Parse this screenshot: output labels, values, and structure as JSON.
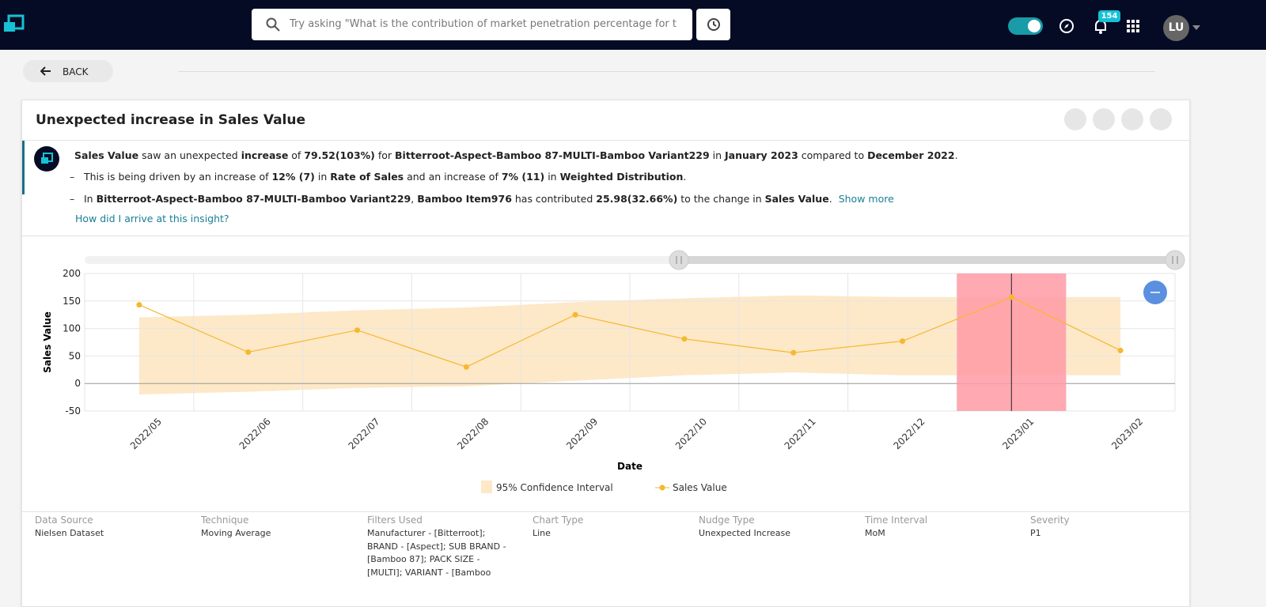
{
  "nav": {
    "search_placeholder": "Try asking \"What is the contribution of market penetration percentage for tr",
    "notification_count": "154",
    "avatar": "LU"
  },
  "back_button": "BACK",
  "card": {
    "title": "Unexpected increase in Sales Value",
    "insight": {
      "lines": [
        {
          "segments": [
            {
              "text": "Sales Value",
              "bold": true
            },
            {
              "text": " saw an unexpected ",
              "bold": false
            },
            {
              "text": "increase",
              "bold": true
            },
            {
              "text": " of ",
              "bold": false
            },
            {
              "text": "79.52(103%)",
              "bold": true
            },
            {
              "text": " for ",
              "bold": false
            },
            {
              "text": "Bitterroot-Aspect-Bamboo 87-MULTI-Bamboo Variant229",
              "bold": true
            },
            {
              "text": " in ",
              "bold": false
            },
            {
              "text": "January 2023",
              "bold": true
            },
            {
              "text": " compared to ",
              "bold": false
            },
            {
              "text": "December 2022",
              "bold": true
            },
            {
              "text": ".",
              "bold": false
            }
          ]
        },
        {
          "bullet": "–",
          "segments": [
            {
              "text": "This is being driven by an increase of ",
              "bold": false
            },
            {
              "text": "12% (7)",
              "bold": true
            },
            {
              "text": " in ",
              "bold": false
            },
            {
              "text": "Rate of Sales",
              "bold": true
            },
            {
              "text": " and an increase of ",
              "bold": false
            },
            {
              "text": "7% (11)",
              "bold": true
            },
            {
              "text": " in ",
              "bold": false
            },
            {
              "text": "Weighted Distribution",
              "bold": true
            },
            {
              "text": ".",
              "bold": false
            }
          ]
        },
        {
          "bullet": "–",
          "segments": [
            {
              "text": "In ",
              "bold": false
            },
            {
              "text": "Bitterroot-Aspect-Bamboo 87-MULTI-Bamboo Variant229",
              "bold": true
            },
            {
              "text": ", ",
              "bold": false
            },
            {
              "text": "Bamboo Item976",
              "bold": true
            },
            {
              "text": " has contributed ",
              "bold": false
            },
            {
              "text": "25.98(32.66%)",
              "bold": true
            },
            {
              "text": " to the change in ",
              "bold": false
            },
            {
              "text": "Sales Value",
              "bold": true
            },
            {
              "text": ".",
              "bold": false
            }
          ],
          "link": "Show more"
        }
      ],
      "explain_link": "How did I arrive at this insight?"
    },
    "details": [
      {
        "label": "Data Source",
        "value": "Nielsen Dataset"
      },
      {
        "label": "Technique",
        "value": "Moving Average"
      },
      {
        "label": "Filters Used",
        "value": "Manufacturer - [Bitterroot]; BRAND - [Aspect]; SUB BRAND - [Bamboo 87]; PACK SIZE - [MULTI]; VARIANT - [Bamboo"
      },
      {
        "label": "Chart Type",
        "value": "Line"
      },
      {
        "label": "Nudge Type",
        "value": "Unexpected Increase"
      },
      {
        "label": "Time Interval",
        "value": "MoM"
      },
      {
        "label": "Severity",
        "value": "P1"
      }
    ]
  },
  "chart_data": {
    "type": "line",
    "x_label": "Date",
    "y_label": "Sales Value",
    "categories": [
      "2022/05",
      "2022/06",
      "2022/07",
      "2022/08",
      "2022/09",
      "2022/10",
      "2022/11",
      "2022/12",
      "2023/01",
      "2023/02"
    ],
    "series": [
      {
        "name": "Sales Value",
        "color": "#f5b82e",
        "values": [
          143,
          57,
          97,
          30,
          125,
          81,
          56,
          77,
          157,
          60
        ]
      }
    ],
    "band": {
      "name": "95% Confidence Interval",
      "color": "#fde8c8",
      "lower": [
        -20,
        -15,
        -8,
        -5,
        5,
        15,
        20,
        15,
        15,
        15
      ],
      "upper": [
        120,
        125,
        133,
        138,
        148,
        155,
        160,
        157,
        157,
        157
      ]
    },
    "highlight": "2023/01",
    "highlight_color": "#ff9aa6",
    "ylim": [
      -50,
      200
    ],
    "yticks": [
      -50,
      0,
      50,
      100,
      150,
      200
    ],
    "grid": true
  }
}
